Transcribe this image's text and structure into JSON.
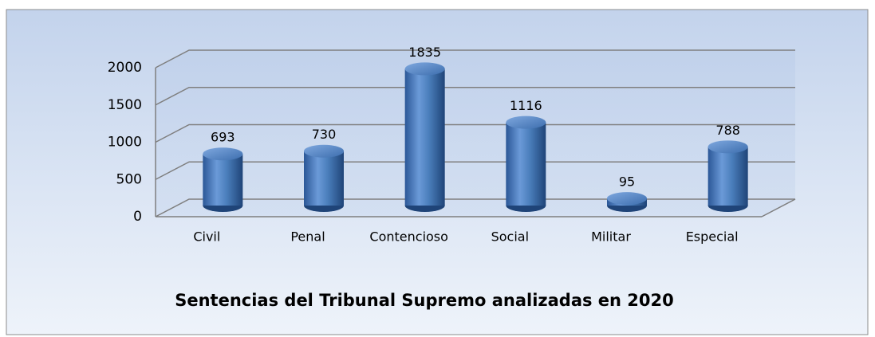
{
  "chart_data": {
    "type": "bar",
    "title": "Sentencias del Tribunal Supremo analizadas en 2020",
    "categories": [
      "Civil",
      "Penal",
      "Contencioso",
      "Social",
      "Militar",
      "Especial"
    ],
    "values": [
      693,
      730,
      1835,
      1116,
      95,
      788
    ],
    "color": "#4a7ebb",
    "ylim": [
      0,
      2000
    ],
    "yticks": [
      0,
      500,
      1000,
      1500,
      2000
    ],
    "grid": true
  }
}
